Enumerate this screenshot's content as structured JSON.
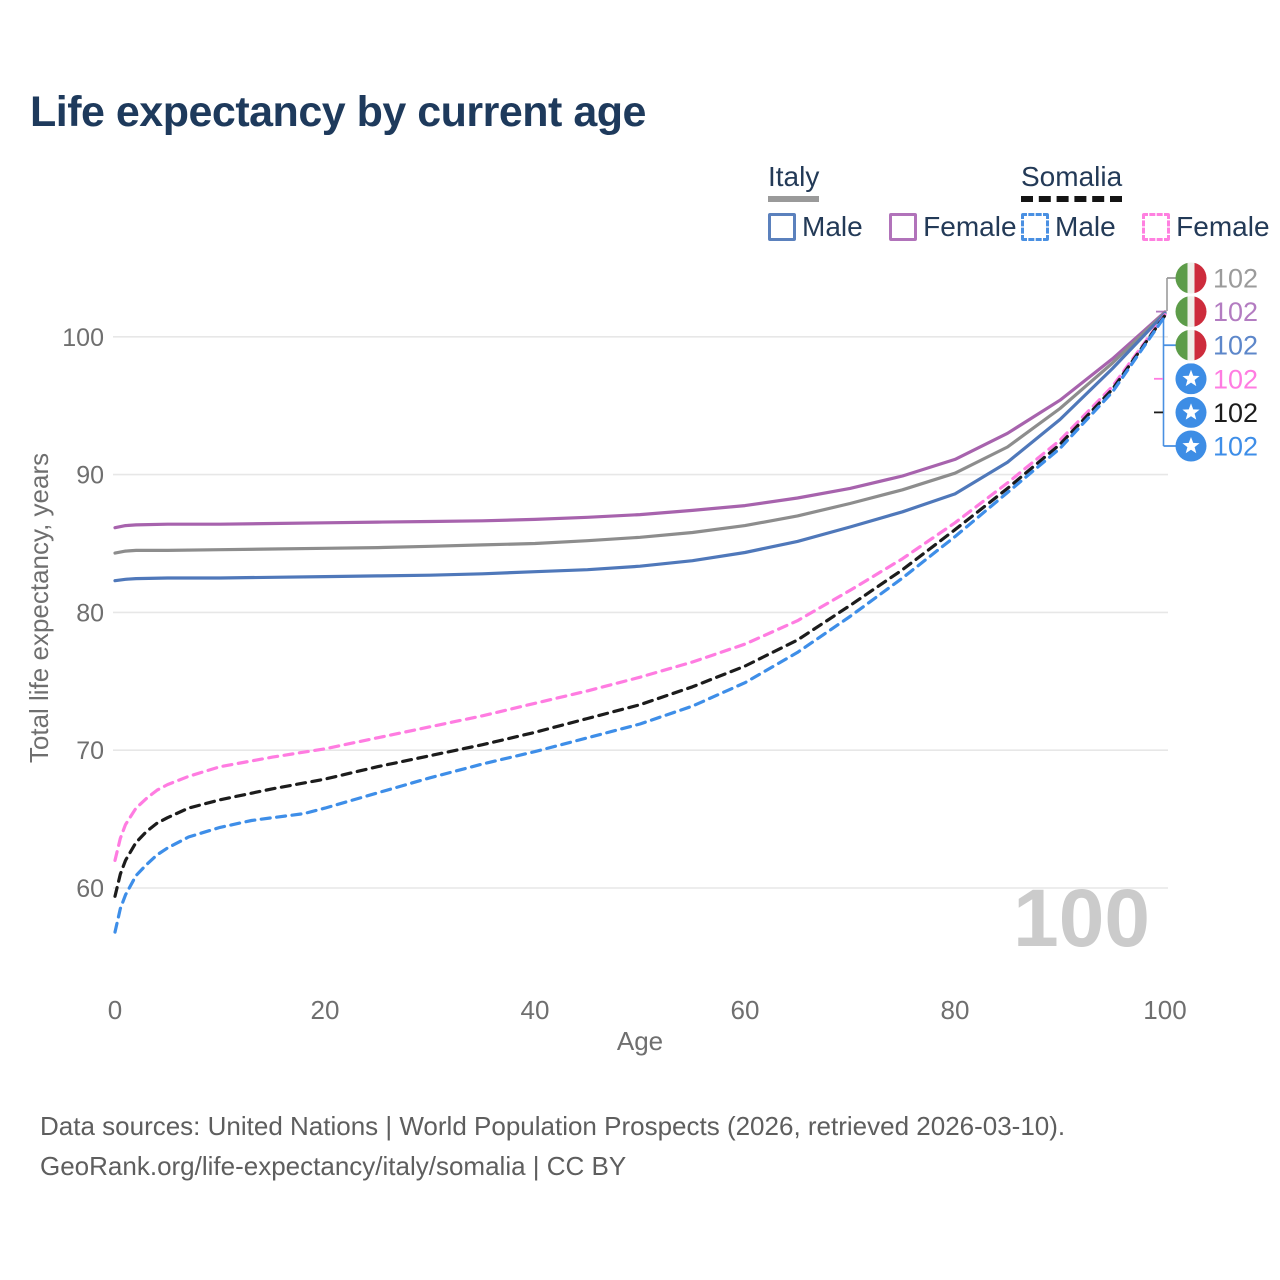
{
  "header": {
    "title": "Life expectancy by current age"
  },
  "legend": {
    "groups": [
      {
        "name": "Italy",
        "line_style": "solid",
        "underline_color": "#9a9a9a",
        "items": [
          {
            "label": "Male",
            "color": "#5b81bd"
          },
          {
            "label": "Female",
            "color": "#b173ba"
          }
        ]
      },
      {
        "name": "Somalia",
        "line_style": "dashed",
        "underline_color": "#141414",
        "items": [
          {
            "label": "Male",
            "color": "#4a90e2"
          },
          {
            "label": "Female",
            "color": "#ff80e0"
          }
        ]
      }
    ]
  },
  "chart_data": {
    "type": "line",
    "title": "Life expectancy by current age",
    "xlabel": "Age",
    "ylabel": "Total life expectancy, years",
    "xlim": [
      0,
      100
    ],
    "ylim": [
      55,
      103
    ],
    "xticks": [
      0,
      20,
      40,
      60,
      80,
      100
    ],
    "yticks": [
      60,
      70,
      80,
      90,
      100
    ],
    "grid": "horizontal",
    "legend_position": "top-right",
    "watermark": "100",
    "series": [
      {
        "id": "italy-female",
        "country": "Italy",
        "sex": "Female",
        "dash": "solid",
        "color": "#a763ad",
        "label_color": "#b37cc1",
        "flag": "italy",
        "label_row": 1,
        "end_label": "102",
        "points": [
          [
            0,
            86.15
          ],
          [
            1,
            86.3
          ],
          [
            2,
            86.35
          ],
          [
            5,
            86.4
          ],
          [
            10,
            86.4
          ],
          [
            15,
            86.45
          ],
          [
            20,
            86.5
          ],
          [
            25,
            86.55
          ],
          [
            30,
            86.6
          ],
          [
            35,
            86.65
          ],
          [
            40,
            86.75
          ],
          [
            45,
            86.9
          ],
          [
            50,
            87.1
          ],
          [
            55,
            87.4
          ],
          [
            60,
            87.75
          ],
          [
            65,
            88.3
          ],
          [
            70,
            89.0
          ],
          [
            75,
            89.9
          ],
          [
            80,
            91.1
          ],
          [
            85,
            93.0
          ],
          [
            90,
            95.4
          ],
          [
            95,
            98.4
          ],
          [
            100,
            101.8
          ]
        ]
      },
      {
        "id": "italy-total",
        "country": "Italy",
        "sex": "Both",
        "dash": "solid",
        "color": "#8d8d8d",
        "label_color": "#9b9b9b",
        "flag": "italy",
        "label_row": 0,
        "end_label": "102",
        "points": [
          [
            0,
            84.3
          ],
          [
            1,
            84.45
          ],
          [
            2,
            84.5
          ],
          [
            5,
            84.5
          ],
          [
            10,
            84.55
          ],
          [
            15,
            84.6
          ],
          [
            20,
            84.65
          ],
          [
            25,
            84.7
          ],
          [
            30,
            84.8
          ],
          [
            35,
            84.9
          ],
          [
            40,
            85.0
          ],
          [
            45,
            85.2
          ],
          [
            50,
            85.45
          ],
          [
            55,
            85.8
          ],
          [
            60,
            86.3
          ],
          [
            65,
            87.0
          ],
          [
            70,
            87.9
          ],
          [
            75,
            88.9
          ],
          [
            80,
            90.1
          ],
          [
            85,
            92.0
          ],
          [
            90,
            94.8
          ],
          [
            95,
            98.1
          ],
          [
            100,
            101.75
          ]
        ]
      },
      {
        "id": "italy-male",
        "country": "Italy",
        "sex": "Male",
        "dash": "solid",
        "color": "#4f78ba",
        "label_color": "#5d87ca",
        "flag": "italy",
        "label_row": 2,
        "end_label": "102",
        "points": [
          [
            0,
            82.3
          ],
          [
            1,
            82.4
          ],
          [
            2,
            82.45
          ],
          [
            5,
            82.5
          ],
          [
            10,
            82.5
          ],
          [
            15,
            82.55
          ],
          [
            20,
            82.6
          ],
          [
            25,
            82.65
          ],
          [
            30,
            82.7
          ],
          [
            35,
            82.8
          ],
          [
            40,
            82.95
          ],
          [
            45,
            83.1
          ],
          [
            50,
            83.35
          ],
          [
            55,
            83.75
          ],
          [
            60,
            84.35
          ],
          [
            65,
            85.15
          ],
          [
            70,
            86.2
          ],
          [
            75,
            87.3
          ],
          [
            80,
            88.6
          ],
          [
            85,
            90.9
          ],
          [
            90,
            94.0
          ],
          [
            95,
            97.7
          ],
          [
            100,
            101.7
          ]
        ]
      },
      {
        "id": "somalia-female",
        "country": "Somalia",
        "sex": "Female",
        "dash": "dashed",
        "color": "#ff7ce1",
        "label_color": "#ff7ce1",
        "flag": "somalia",
        "label_row": 3,
        "end_label": "102",
        "points": [
          [
            0,
            62.0
          ],
          [
            0.5,
            63.6
          ],
          [
            1,
            64.6
          ],
          [
            2,
            65.8
          ],
          [
            3,
            66.5
          ],
          [
            4,
            67.1
          ],
          [
            5,
            67.5
          ],
          [
            7,
            68.1
          ],
          [
            10,
            68.8
          ],
          [
            15,
            69.5
          ],
          [
            20,
            70.1
          ],
          [
            25,
            70.9
          ],
          [
            30,
            71.7
          ],
          [
            35,
            72.5
          ],
          [
            40,
            73.4
          ],
          [
            45,
            74.3
          ],
          [
            50,
            75.3
          ],
          [
            55,
            76.4
          ],
          [
            60,
            77.7
          ],
          [
            65,
            79.4
          ],
          [
            70,
            81.6
          ],
          [
            75,
            83.9
          ],
          [
            80,
            86.5
          ],
          [
            85,
            89.4
          ],
          [
            90,
            92.5
          ],
          [
            95,
            96.4
          ],
          [
            100,
            101.6
          ]
        ]
      },
      {
        "id": "somalia-total",
        "country": "Somalia",
        "sex": "Both",
        "dash": "dashed",
        "color": "#1c1c1c",
        "label_color": "#1c1c1c",
        "flag": "somalia",
        "label_row": 4,
        "end_label": "102",
        "points": [
          [
            0,
            59.4
          ],
          [
            0.5,
            61.0
          ],
          [
            1,
            62.0
          ],
          [
            2,
            63.3
          ],
          [
            3,
            64.1
          ],
          [
            4,
            64.7
          ],
          [
            5,
            65.1
          ],
          [
            7,
            65.8
          ],
          [
            10,
            66.4
          ],
          [
            15,
            67.2
          ],
          [
            20,
            67.9
          ],
          [
            25,
            68.8
          ],
          [
            30,
            69.6
          ],
          [
            35,
            70.4
          ],
          [
            40,
            71.3
          ],
          [
            45,
            72.3
          ],
          [
            50,
            73.3
          ],
          [
            55,
            74.6
          ],
          [
            60,
            76.1
          ],
          [
            65,
            78.0
          ],
          [
            70,
            80.5
          ],
          [
            75,
            83.1
          ],
          [
            80,
            86.0
          ],
          [
            85,
            89.0
          ],
          [
            90,
            92.2
          ],
          [
            95,
            96.2
          ],
          [
            100,
            101.55
          ]
        ]
      },
      {
        "id": "somalia-male",
        "country": "Somalia",
        "sex": "Male",
        "dash": "dashed",
        "color": "#3e8ee8",
        "label_color": "#3e8ee8",
        "flag": "somalia",
        "label_row": 5,
        "end_label": "102",
        "points": [
          [
            0,
            56.8
          ],
          [
            0.5,
            58.5
          ],
          [
            1,
            59.5
          ],
          [
            2,
            60.9
          ],
          [
            3,
            61.7
          ],
          [
            4,
            62.4
          ],
          [
            5,
            62.9
          ],
          [
            7,
            63.7
          ],
          [
            10,
            64.4
          ],
          [
            13,
            64.9
          ],
          [
            15,
            65.1
          ],
          [
            18,
            65.4
          ],
          [
            20,
            65.8
          ],
          [
            25,
            66.9
          ],
          [
            30,
            68.0
          ],
          [
            35,
            69.0
          ],
          [
            40,
            69.9
          ],
          [
            45,
            70.9
          ],
          [
            50,
            71.9
          ],
          [
            55,
            73.2
          ],
          [
            60,
            74.9
          ],
          [
            65,
            77.1
          ],
          [
            70,
            79.7
          ],
          [
            75,
            82.5
          ],
          [
            80,
            85.5
          ],
          [
            85,
            88.7
          ],
          [
            90,
            91.9
          ],
          [
            95,
            96.0
          ],
          [
            100,
            101.5
          ]
        ]
      }
    ]
  },
  "footer": {
    "line1": "Data sources: United Nations | World Population Prospects (2026, retrieved 2026-03-10).",
    "line2": "GeoRank.org/life-expectancy/italy/somalia | CC BY"
  }
}
